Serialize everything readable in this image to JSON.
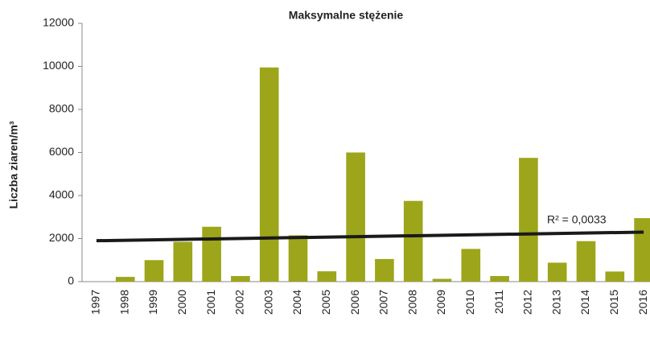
{
  "chart_data": {
    "type": "bar",
    "title": "Maksymalne stężenie",
    "y_label": "Liczba ziaren/m³",
    "categories": [
      "1997",
      "1998",
      "1999",
      "2000",
      "2001",
      "2002",
      "2003",
      "2004",
      "2005",
      "2006",
      "2007",
      "2008",
      "2009",
      "2010",
      "2011",
      "2012",
      "2013",
      "2014",
      "2015",
      "2016"
    ],
    "values": [
      0,
      220,
      1000,
      1850,
      2550,
      260,
      9950,
      2150,
      480,
      6000,
      1050,
      3750,
      130,
      1520,
      260,
      5750,
      880,
      1880,
      470,
      2950
    ],
    "color": "#9da51a",
    "trendline": {
      "values": [
        1900,
        2300
      ],
      "color": "#1a1a1a"
    },
    "annotation": "R² = 0,0033",
    "ylim": [
      0,
      12000
    ],
    "yticks": [
      0,
      2000,
      4000,
      6000,
      8000,
      10000,
      12000
    ]
  }
}
